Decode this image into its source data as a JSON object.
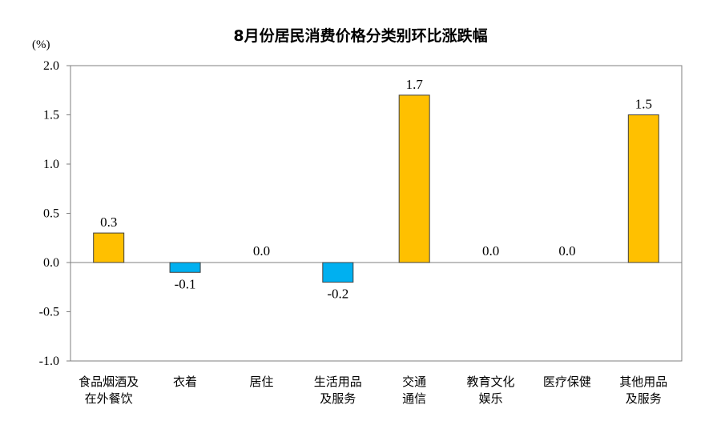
{
  "chart_data": {
    "type": "bar",
    "title": "8月份居民消费价格分类别环比涨跌幅",
    "unit": "(%)",
    "categories": [
      [
        "食品烟酒及",
        "在外餐饮"
      ],
      [
        "衣着"
      ],
      [
        "居住"
      ],
      [
        "生活用品",
        "及服务"
      ],
      [
        "交通",
        "通信"
      ],
      [
        "教育文化",
        "娱乐"
      ],
      [
        "医疗保健"
      ],
      [
        "其他用品",
        "及服务"
      ]
    ],
    "values": [
      0.3,
      -0.1,
      0.0,
      -0.2,
      1.7,
      0.0,
      0.0,
      1.5
    ],
    "value_labels": [
      "0.3",
      "-0.1",
      "0.0",
      "-0.2",
      "1.7",
      "0.0",
      "0.0",
      "1.5"
    ],
    "yticks": [
      "2.0",
      "1.5",
      "1.0",
      "0.5",
      "0.0",
      "-0.5",
      "-1.0"
    ],
    "ylim": [
      -1.0,
      2.0
    ],
    "grid": false,
    "colors": {
      "positive": "#FFC000",
      "negative": "#00B0F0",
      "outline": "#404040"
    }
  }
}
